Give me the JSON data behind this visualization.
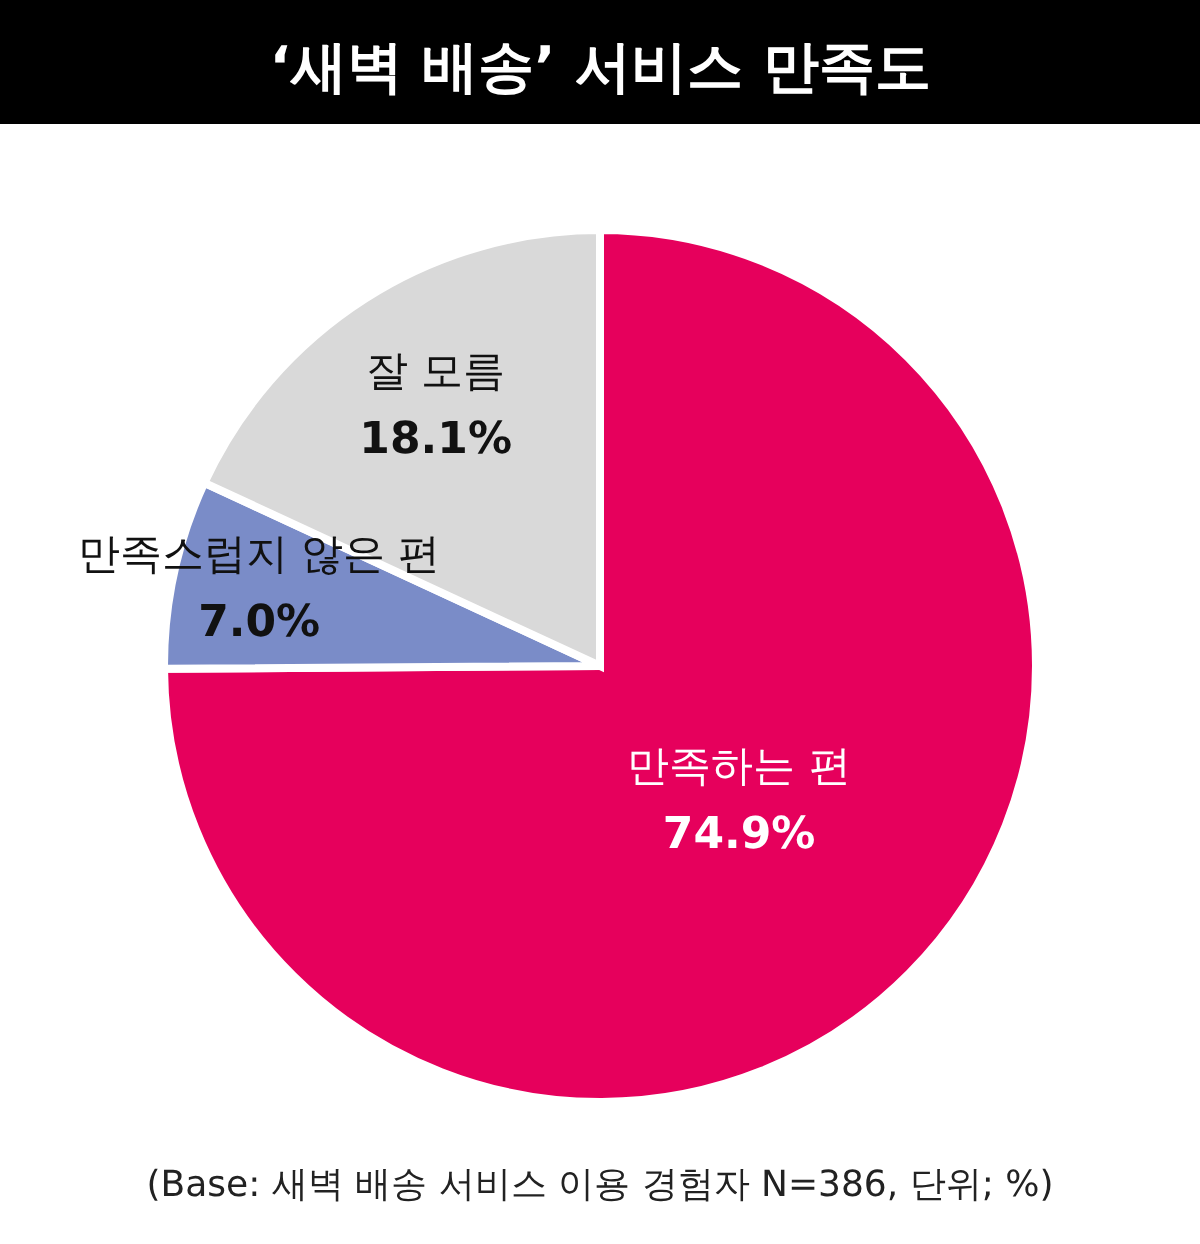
{
  "chart_data": {
    "type": "pie",
    "title": "‘새벽 배송’ 서비스 만족도",
    "categories": [
      "만족하는 편",
      "만족스럽지 않은 편",
      "잘 모름"
    ],
    "values": [
      74.9,
      7.0,
      18.1
    ],
    "colors": [
      "#e6005c",
      "#7a8cc8",
      "#d9d9d9"
    ],
    "value_labels": [
      "74.9%",
      "7.0%",
      "18.1%"
    ],
    "annotations": [
      "(Base: 새벽 배송 서비스 이용 경험자 N=386, 단위; %)"
    ]
  }
}
